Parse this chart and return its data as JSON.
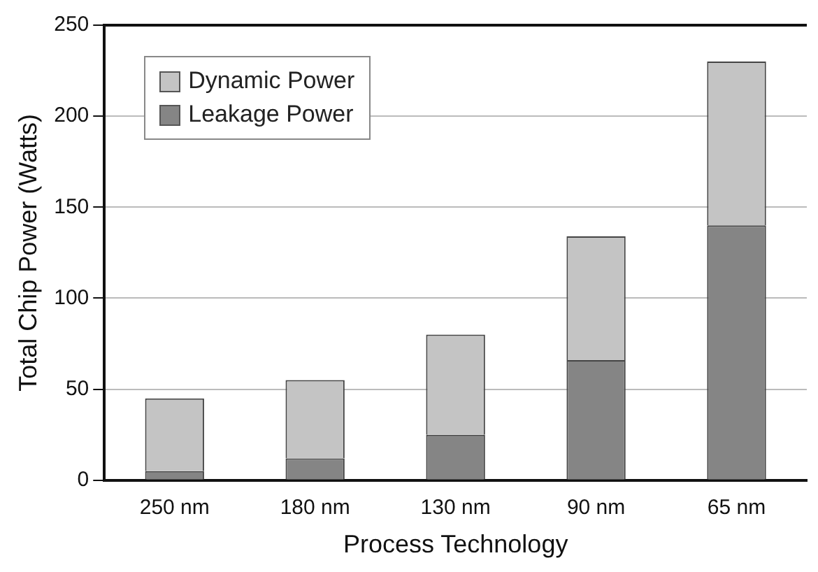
{
  "chart_data": {
    "type": "bar",
    "stacked": true,
    "xlabel": "Process Technology",
    "ylabel": "Total Chip Power (Watts)",
    "categories": [
      "250 nm",
      "180 nm",
      "130 nm",
      "90 nm",
      "65 nm"
    ],
    "series": [
      {
        "name": "Leakage Power",
        "color": "#858585",
        "values": [
          5,
          12,
          25,
          66,
          140
        ]
      },
      {
        "name": "Dynamic Power",
        "color": "#c4c4c4",
        "values": [
          40,
          43,
          55,
          68,
          90
        ]
      }
    ],
    "ylim": [
      0,
      250
    ],
    "yticks": [
      0,
      50,
      100,
      150,
      200,
      250
    ],
    "grid": "y",
    "legend": "top left"
  }
}
